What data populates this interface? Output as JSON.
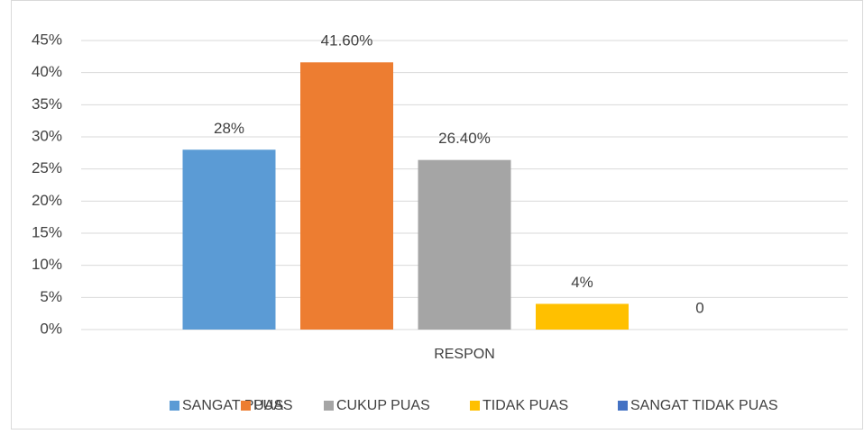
{
  "chart_data": {
    "type": "bar",
    "categories": [
      "RESPON"
    ],
    "series": [
      {
        "name": "SANGAT PUAS",
        "color": "#5b9bd5",
        "values": [
          28
        ],
        "value_labels": [
          "28%"
        ]
      },
      {
        "name": "PUAS",
        "color": "#ed7d31",
        "values": [
          41.6
        ],
        "value_labels": [
          "41.60%"
        ]
      },
      {
        "name": "CUKUP PUAS",
        "color": "#a5a5a5",
        "values": [
          26.4
        ],
        "value_labels": [
          "26.40%"
        ]
      },
      {
        "name": "TIDAK PUAS",
        "color": "#ffc000",
        "values": [
          4
        ],
        "value_labels": [
          "4%"
        ]
      },
      {
        "name": "SANGAT TIDAK PUAS",
        "color": "#4472c4",
        "values": [
          0
        ]
      }
    ],
    "ylim": [
      0,
      45
    ],
    "yticks": [
      {
        "value": 0,
        "label": "0%"
      },
      {
        "value": 5,
        "label": "5%"
      },
      {
        "value": 10,
        "label": "10%"
      },
      {
        "value": 15,
        "label": "15%"
      },
      {
        "value": 20,
        "label": "20%"
      },
      {
        "value": 25,
        "label": "25%"
      },
      {
        "value": 30,
        "label": "30%"
      },
      {
        "value": 35,
        "label": "35%"
      },
      {
        "value": 40,
        "label": "40%"
      },
      {
        "value": 45,
        "label": "45%"
      }
    ],
    "grid": true,
    "legend": "bottom"
  }
}
